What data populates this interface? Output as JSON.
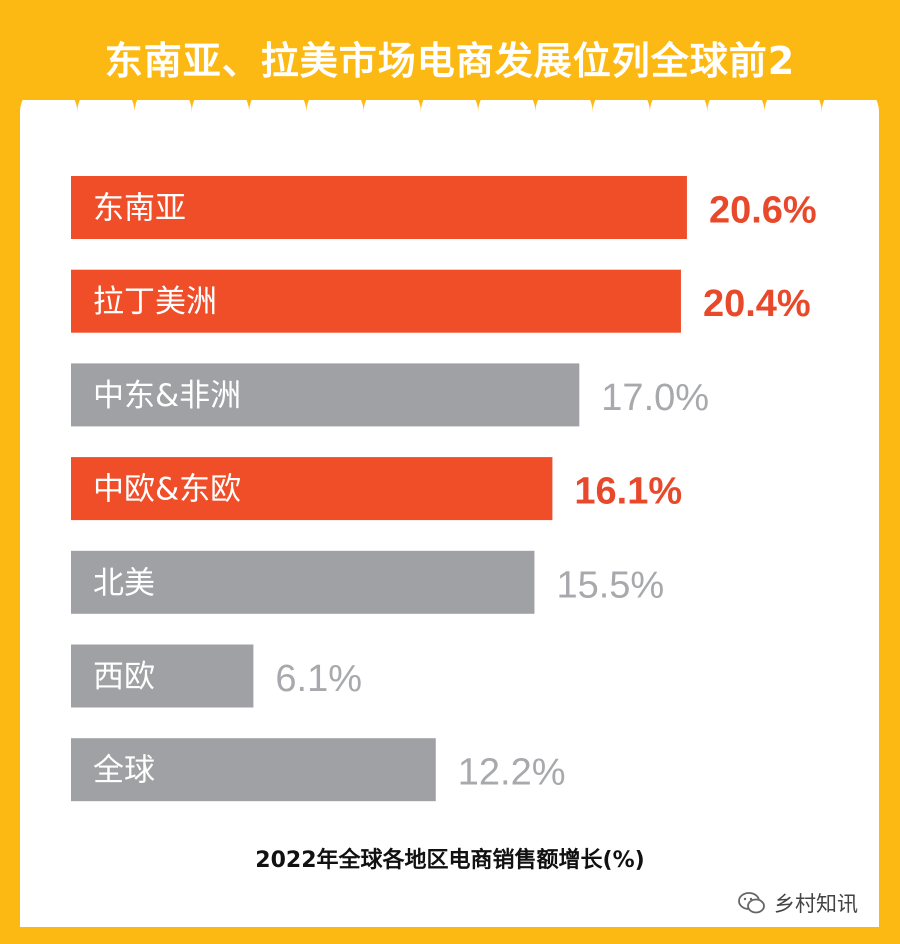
{
  "title": "东南亚、拉美市场电商发展位列全球前2",
  "chart_data": {
    "type": "bar",
    "orientation": "horizontal",
    "caption": "2022年全球各地区电商销售额增长(%)",
    "categories": [
      "东南亚",
      "拉丁美洲",
      "中东&非洲",
      "中欧&东欧",
      "北美",
      "西欧",
      "全球"
    ],
    "values": [
      20.6,
      20.4,
      17.0,
      16.1,
      15.5,
      6.1,
      12.2
    ],
    "value_labels": [
      "20.6%",
      "20.4%",
      "17.0%",
      "16.1%",
      "15.5%",
      "6.1%",
      "12.2%"
    ],
    "highlighted": [
      true,
      true,
      false,
      true,
      false,
      false,
      false
    ],
    "grid": false,
    "legend": "none"
  },
  "colors": {
    "frame": "#FDB913",
    "highlight": "#F04E29",
    "neutral": "#A0A1A5",
    "highlight_text": "#E8492A",
    "neutral_text": "#A8A9AD"
  },
  "watermark": {
    "icon": "wechat-chat-icon",
    "text": "乡村知讯"
  }
}
